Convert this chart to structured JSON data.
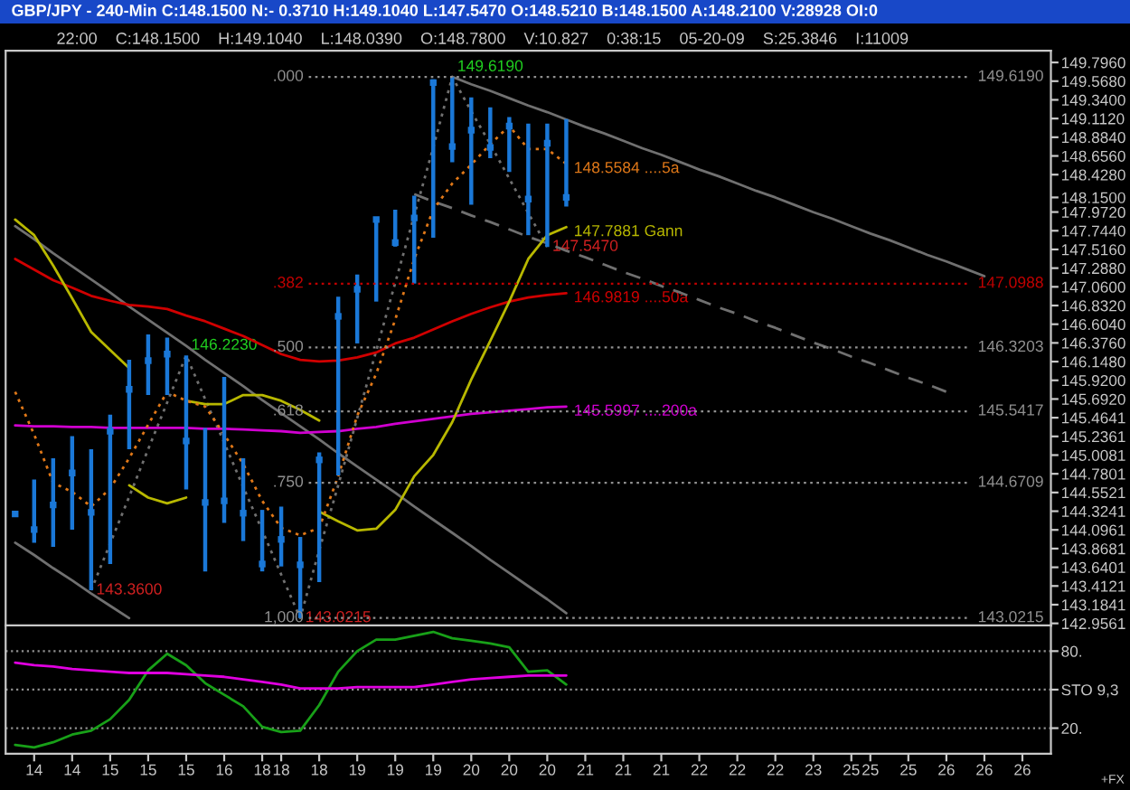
{
  "chart_data": [
    {
      "type": "line",
      "title": "GBP/JPY - 240-Min C:148.1500 N:- 0.3710 H:149.1040 L:147.5470 O:148.5210 B:148.1500 A:148.2100 V:28928 OI:0",
      "subtitle": "22:00    C:148.1500    H:149.1040    L:148.0390    O:148.7800    V:10.827    0:38:15    05-20-09    S:25.3846    I:11009",
      "categories": [
        null,
        "14",
        null,
        "14",
        null,
        "15",
        null,
        "15",
        null,
        "15",
        null,
        "16",
        null,
        "18",
        "18",
        null,
        "18",
        null,
        "19",
        null,
        "19",
        null,
        "19",
        null,
        "20",
        null,
        "20",
        null,
        "20",
        null,
        "21",
        null,
        "21",
        null,
        "21",
        null,
        "22",
        null,
        "22",
        null,
        "22",
        null,
        "23",
        null,
        "25",
        "25",
        null,
        "25",
        null,
        "26",
        null,
        "26",
        null,
        "26",
        null
      ],
      "tick_labels": "y",
      "ylim": [
        142.93,
        149.94
      ],
      "yticks": [
        {
          "value": 149.796,
          "label": "149.7960"
        },
        {
          "value": 149.568,
          "label": "149.5680"
        },
        {
          "value": 149.34,
          "label": "149.3400"
        },
        {
          "value": 149.112,
          "label": "149.1120"
        },
        {
          "value": 148.884,
          "label": "148.8840"
        },
        {
          "value": 148.656,
          "label": "148.6560"
        },
        {
          "value": 148.428,
          "label": "148.4280"
        },
        {
          "value": 148.15,
          "label": "148.1500"
        },
        {
          "value": 147.972,
          "label": "147.9720"
        },
        {
          "value": 147.744,
          "label": "147.7440"
        },
        {
          "value": 147.516,
          "label": "147.5160"
        },
        {
          "value": 147.288,
          "label": "147.2880"
        },
        {
          "value": 147.06,
          "label": "147.0600"
        },
        {
          "value": 146.832,
          "label": "146.8320"
        },
        {
          "value": 146.604,
          "label": "146.6040"
        },
        {
          "value": 146.376,
          "label": "146.3760"
        },
        {
          "value": 146.148,
          "label": "146.1480"
        },
        {
          "value": 145.92,
          "label": "145.9200"
        },
        {
          "value": 145.692,
          "label": "145.6920"
        },
        {
          "value": 145.4641,
          "label": "145.4641"
        },
        {
          "value": 145.2361,
          "label": "145.2361"
        },
        {
          "value": 145.0081,
          "label": "145.0081"
        },
        {
          "value": 144.7801,
          "label": "144.7801"
        },
        {
          "value": 144.5521,
          "label": "144.5521"
        },
        {
          "value": 144.3241,
          "label": "144.3241"
        },
        {
          "value": 144.0961,
          "label": "144.0961"
        },
        {
          "value": 143.8681,
          "label": "143.8681"
        },
        {
          "value": 143.6401,
          "label": "143.6401"
        },
        {
          "value": 143.4121,
          "label": "143.4121"
        },
        {
          "value": 143.1841,
          "label": "143.1841"
        },
        {
          "value": 142.9561,
          "label": "142.9561"
        }
      ],
      "series": [
        {
          "color": "#707070",
          "line_style": "solid",
          "values": [
            147.8,
            147.64,
            147.47,
            147.31,
            147.15,
            146.99,
            146.82,
            146.66,
            146.5,
            146.34,
            146.17,
            146.01,
            145.85,
            145.68,
            145.52,
            145.36,
            145.2,
            145.03,
            144.87,
            144.71,
            144.55,
            144.38,
            144.22,
            144.06,
            143.9,
            143.73,
            143.57,
            143.41,
            143.25,
            143.08,
            null,
            null,
            null,
            null,
            null,
            null,
            null,
            null,
            null,
            null,
            null,
            null,
            null,
            null,
            null,
            null,
            null,
            null,
            null,
            null,
            null,
            null,
            null,
            null,
            null
          ]
        },
        {
          "color": "#707070",
          "line_style": "solid",
          "values": [
            143.94,
            143.79,
            143.63,
            143.48,
            143.32,
            143.17,
            143.02,
            null,
            null,
            null,
            null,
            null,
            null,
            null,
            null,
            null,
            null,
            null,
            null,
            null,
            null,
            null,
            null,
            null,
            null,
            null,
            null,
            null,
            null,
            null,
            null,
            null,
            null,
            null,
            null,
            null,
            null,
            null,
            null,
            null,
            null,
            null,
            null,
            null,
            null,
            null,
            null,
            null,
            null,
            null,
            null,
            null,
            null,
            null,
            null
          ]
        },
        {
          "color": "#707070",
          "line_style": "solid",
          "values": [
            null,
            null,
            null,
            null,
            null,
            null,
            null,
            null,
            null,
            null,
            null,
            null,
            null,
            null,
            null,
            null,
            null,
            null,
            null,
            null,
            null,
            null,
            null,
            149.62,
            149.53,
            149.45,
            149.36,
            149.27,
            149.19,
            149.1,
            149.01,
            148.93,
            148.84,
            148.75,
            148.67,
            148.58,
            148.49,
            148.41,
            148.32,
            148.23,
            148.15,
            148.06,
            147.97,
            147.89,
            147.8,
            147.71,
            147.63,
            147.54,
            147.45,
            147.37,
            147.28,
            147.19,
            null,
            null,
            null
          ]
        },
        {
          "color": "#707070",
          "line_style": "dashed",
          "values": [
            null,
            null,
            null,
            null,
            null,
            null,
            null,
            null,
            null,
            null,
            null,
            null,
            null,
            null,
            null,
            null,
            null,
            null,
            null,
            null,
            null,
            148.19,
            148.1,
            148.02,
            147.93,
            147.85,
            147.76,
            147.67,
            147.59,
            147.5,
            147.42,
            147.33,
            147.24,
            147.16,
            147.07,
            146.99,
            146.9,
            146.81,
            146.73,
            146.64,
            146.56,
            146.47,
            146.38,
            146.3,
            146.21,
            146.13,
            146.04,
            145.95,
            145.87,
            145.78,
            null,
            null,
            null,
            null,
            null
          ]
        },
        {
          "color": "#707070",
          "line_style": "dotted",
          "values": [
            null,
            null,
            null,
            null,
            143.36,
            143.93,
            144.5,
            145.08,
            145.65,
            146.223,
            145.69,
            145.16,
            144.62,
            144.09,
            143.55,
            143.0215,
            143.85,
            144.64,
            145.46,
            146.28,
            147.11,
            147.93,
            148.76,
            149.619,
            149.2,
            148.8,
            148.38,
            147.96,
            147.547,
            null,
            null,
            null,
            null,
            null,
            null,
            null,
            null,
            null,
            null,
            null,
            null,
            null,
            null,
            null,
            null,
            null,
            null,
            null,
            null,
            null,
            null,
            null,
            null,
            null,
            null
          ],
          "value_labels": [
            null,
            null,
            null,
            null,
            "143.3600",
            null,
            null,
            null,
            null,
            "146.2230",
            null,
            null,
            null,
            null,
            null,
            "143.0215",
            null,
            null,
            null,
            null,
            null,
            null,
            null,
            "149.6190",
            null,
            null,
            null,
            null,
            "147.5470",
            null,
            null,
            null,
            null,
            null,
            null,
            null,
            null,
            null,
            null,
            null,
            null,
            null,
            null,
            null,
            null,
            null,
            null,
            null,
            null,
            null,
            null,
            null,
            null,
            null,
            null
          ]
        },
        {
          "name": "146.9819 ....50a",
          "color": "#d00000",
          "line_style": "solid",
          "values": [
            147.4,
            147.27,
            147.14,
            147.05,
            146.95,
            146.89,
            146.84,
            146.82,
            146.79,
            146.71,
            146.64,
            146.55,
            146.46,
            146.35,
            146.24,
            146.17,
            146.15,
            146.16,
            146.2,
            146.26,
            146.37,
            146.44,
            146.54,
            146.64,
            146.73,
            146.81,
            146.88,
            146.93,
            146.96,
            146.9819,
            null,
            null,
            null,
            null,
            null,
            null,
            null,
            null,
            null,
            null,
            null,
            null,
            null,
            null,
            null,
            null,
            null,
            null,
            null,
            null,
            null,
            null,
            null,
            null,
            null
          ]
        },
        {
          "name": "145.5997 ....200a",
          "color": "#d000d0",
          "line_style": "solid",
          "values": [
            145.37,
            145.36,
            145.36,
            145.35,
            145.35,
            145.34,
            145.34,
            145.34,
            145.34,
            145.34,
            145.33,
            145.33,
            145.32,
            145.31,
            145.3,
            145.28,
            145.29,
            145.3,
            145.33,
            145.35,
            145.39,
            145.42,
            145.45,
            145.48,
            145.51,
            145.53,
            145.55,
            145.57,
            145.59,
            145.5997,
            null,
            null,
            null,
            null,
            null,
            null,
            null,
            null,
            null,
            null,
            null,
            null,
            null,
            null,
            null,
            null,
            null,
            null,
            null,
            null,
            null,
            null,
            null,
            null,
            null
          ]
        },
        {
          "color": "#b8b800",
          "line_style": "solid",
          "values": [
            147.88,
            147.69,
            147.32,
            146.92,
            146.51,
            146.29,
            146.07,
            null,
            null,
            null,
            null,
            null,
            null,
            null,
            null,
            null,
            null,
            null,
            null,
            null,
            null,
            null,
            null,
            null,
            null,
            null,
            null,
            null,
            null,
            null,
            null,
            null,
            null,
            null,
            null,
            null,
            null,
            null,
            null,
            null,
            null,
            null,
            null,
            null,
            null,
            null,
            null,
            null,
            null,
            null,
            null,
            null,
            null,
            null,
            null
          ]
        },
        {
          "color": "#b8b800",
          "line_style": "solid",
          "values": [
            null,
            null,
            null,
            null,
            null,
            null,
            144.64,
            144.49,
            144.42,
            144.49,
            null,
            null,
            null,
            null,
            null,
            null,
            null,
            null,
            null,
            null,
            null,
            null,
            null,
            null,
            null,
            null,
            null,
            null,
            null,
            null,
            null,
            null,
            null,
            null,
            null,
            null,
            null,
            null,
            null,
            null,
            null,
            null,
            null,
            null,
            null,
            null,
            null,
            null,
            null,
            null,
            null,
            null,
            null,
            null,
            null
          ]
        },
        {
          "color": "#b8b800",
          "line_style": "solid",
          "values": [
            null,
            null,
            null,
            null,
            null,
            null,
            null,
            null,
            null,
            145.67,
            145.63,
            145.63,
            145.74,
            145.74,
            145.67,
            145.56,
            145.43,
            null,
            null,
            null,
            null,
            null,
            null,
            null,
            null,
            null,
            null,
            null,
            null,
            null,
            null,
            null,
            null,
            null,
            null,
            null,
            null,
            null,
            null,
            null,
            null,
            null,
            null,
            null,
            null,
            null,
            null,
            null,
            null,
            null,
            null,
            null,
            null,
            null,
            null
          ]
        },
        {
          "name": "147.7881 Gann",
          "color": "#b8b800",
          "line_style": "solid",
          "values": [
            null,
            null,
            null,
            null,
            null,
            null,
            null,
            null,
            null,
            null,
            null,
            null,
            null,
            null,
            null,
            null,
            144.32,
            144.2,
            144.09,
            144.11,
            144.34,
            144.75,
            145.01,
            145.41,
            145.93,
            146.4,
            146.88,
            147.4,
            147.69,
            147.7881,
            null,
            null,
            null,
            null,
            null,
            null,
            null,
            null,
            null,
            null,
            null,
            null,
            null,
            null,
            null,
            null,
            null,
            null,
            null,
            null,
            null,
            null,
            null,
            null,
            null
          ]
        },
        {
          "name": "148.5584 ....5a",
          "color": "#e07818",
          "line_style": "dotted",
          "values": [
            145.78,
            145.26,
            144.67,
            144.56,
            144.38,
            144.6,
            144.97,
            145.38,
            145.78,
            145.67,
            145.6,
            145.26,
            144.9,
            144.45,
            144.12,
            144.03,
            144.12,
            144.75,
            145.49,
            146.0,
            146.66,
            147.4,
            148.0,
            148.32,
            148.55,
            148.8,
            149.02,
            148.74,
            148.74,
            148.5584,
            null,
            null,
            null,
            null,
            null,
            null,
            null,
            null,
            null,
            null,
            null,
            null,
            null,
            null,
            null,
            null,
            null,
            null,
            null,
            null,
            null,
            null,
            null,
            null,
            null
          ]
        },
        {
          "type": "scatter",
          "color": "#1a78d8",
          "marker": "square",
          "values": [
            144.29,
            144.1,
            144.4,
            144.79,
            144.31,
            145.3,
            145.81,
            146.16,
            146.24,
            145.18,
            144.43,
            144.45,
            144.3,
            143.68,
            143.98,
            143.67,
            144.95,
            146.7,
            147.03,
            147.88,
            147.6,
            147.9,
            149.55,
            148.77,
            148.97,
            148.76,
            149.02,
            148.13,
            148.81,
            148.15,
            null,
            null,
            null,
            null,
            null,
            null,
            null,
            null,
            null,
            null,
            null,
            null,
            null,
            null,
            null,
            null,
            null,
            null,
            null,
            null,
            null,
            null,
            null,
            null,
            null
          ],
          "errors": [
            null,
            [
              143.94,
              144.71
            ],
            [
              143.89,
              144.97
            ],
            [
              144.1,
              145.24
            ],
            [
              143.36,
              145.08
            ],
            [
              143.68,
              145.5
            ],
            [
              145.08,
              146.17
            ],
            [
              145.74,
              146.48
            ],
            [
              145.74,
              146.44
            ],
            [
              144.59,
              146.223
            ],
            [
              143.59,
              145.34
            ],
            [
              144.18,
              145.96
            ],
            [
              143.96,
              144.97
            ],
            [
              143.59,
              144.34
            ],
            [
              143.65,
              144.38
            ],
            [
              143.0215,
              144.01
            ],
            [
              143.46,
              145.04
            ],
            [
              144.76,
              146.94
            ],
            [
              146.37,
              147.21
            ],
            [
              146.88,
              147.91
            ],
            [
              147.55,
              148.0
            ],
            [
              147.1,
              148.17
            ],
            [
              147.66,
              149.59
            ],
            [
              148.58,
              149.619
            ],
            [
              148.06,
              149.37
            ],
            [
              148.63,
              149.25
            ],
            [
              148.46,
              149.13
            ],
            [
              147.69,
              149.05
            ],
            [
              147.547,
              149.05
            ],
            [
              148.039,
              149.104
            ],
            null,
            null,
            null,
            null,
            null,
            null,
            null,
            null,
            null,
            null,
            null,
            null,
            null,
            null,
            null,
            null,
            null,
            null,
            null,
            null,
            null,
            null,
            null,
            null,
            null
          ]
        }
      ],
      "ref_lines": [
        {
          "axis": "y",
          "value": 149.619,
          "label": "149.6190",
          "color": "#909090",
          "line_style": "dotted"
        },
        {
          "axis": "y",
          "value": 147.0988,
          "label": "147.0988",
          "color": "#c00000",
          "line_style": "dotted"
        },
        {
          "axis": "y",
          "value": 146.3203,
          "label": "146.3203",
          "color": "#909090",
          "line_style": "dotted"
        },
        {
          "axis": "y",
          "value": 145.5417,
          "label": "145.5417",
          "color": "#909090",
          "line_style": "dotted"
        },
        {
          "axis": "y",
          "value": 144.6709,
          "label": "144.6709",
          "color": "#909090",
          "line_style": "dotted"
        },
        {
          "axis": "y",
          "value": 143.0215,
          "label": "143.0215",
          "color": "#909090",
          "line_style": "dotted"
        }
      ],
      "annotations": [
        ".000",
        ".382",
        ".500",
        ".618",
        ".750",
        "1,000"
      ]
    },
    {
      "type": "line",
      "ylim": [
        0,
        100
      ],
      "grid": "y",
      "yticks": [
        {
          "value": 80,
          "label": "80."
        },
        {
          "value": 50,
          "label": "STO 9,3"
        },
        {
          "value": 20,
          "label": "20."
        }
      ],
      "categories": [
        null,
        "14",
        null,
        "14",
        null,
        "15",
        null,
        "15",
        null,
        "15",
        null,
        "16",
        null,
        "18",
        "18",
        null,
        "18",
        null,
        "19",
        null,
        "19",
        null,
        "19",
        null,
        "20",
        null,
        "20",
        null,
        "20",
        null,
        "21",
        null,
        "21",
        null,
        "21",
        null,
        "22",
        null,
        "22",
        null,
        "22",
        null,
        "23",
        null,
        "25",
        "25",
        null,
        "25",
        null,
        "26",
        null,
        "26",
        null,
        "26",
        null
      ],
      "series": [
        {
          "color": "#18a018",
          "line_style": "solid",
          "values": [
            7,
            5,
            9,
            15,
            18,
            27,
            42,
            65,
            78,
            69,
            55,
            46,
            37,
            21,
            17,
            18,
            38,
            64,
            80,
            89,
            89,
            92,
            95,
            90,
            88,
            86,
            83,
            64,
            65,
            54,
            null,
            null,
            null,
            null,
            null,
            null,
            null,
            null,
            null,
            null,
            null,
            null,
            null,
            null,
            null,
            null,
            null,
            null,
            null,
            null,
            null,
            null,
            null,
            null,
            null
          ]
        },
        {
          "color": "#e000e0",
          "line_style": "solid",
          "values": [
            71,
            69,
            68,
            66,
            65,
            64,
            63,
            63,
            63,
            62,
            61,
            60,
            58,
            56,
            54,
            51,
            51,
            51,
            52,
            52,
            52,
            52,
            54,
            56,
            58,
            59,
            60,
            61,
            61,
            61,
            null,
            null,
            null,
            null,
            null,
            null,
            null,
            null,
            null,
            null,
            null,
            null,
            null,
            null,
            null,
            null,
            null,
            null,
            null,
            null,
            null,
            null,
            null,
            null,
            null
          ]
        }
      ],
      "annotations": [
        "+FX"
      ]
    }
  ]
}
